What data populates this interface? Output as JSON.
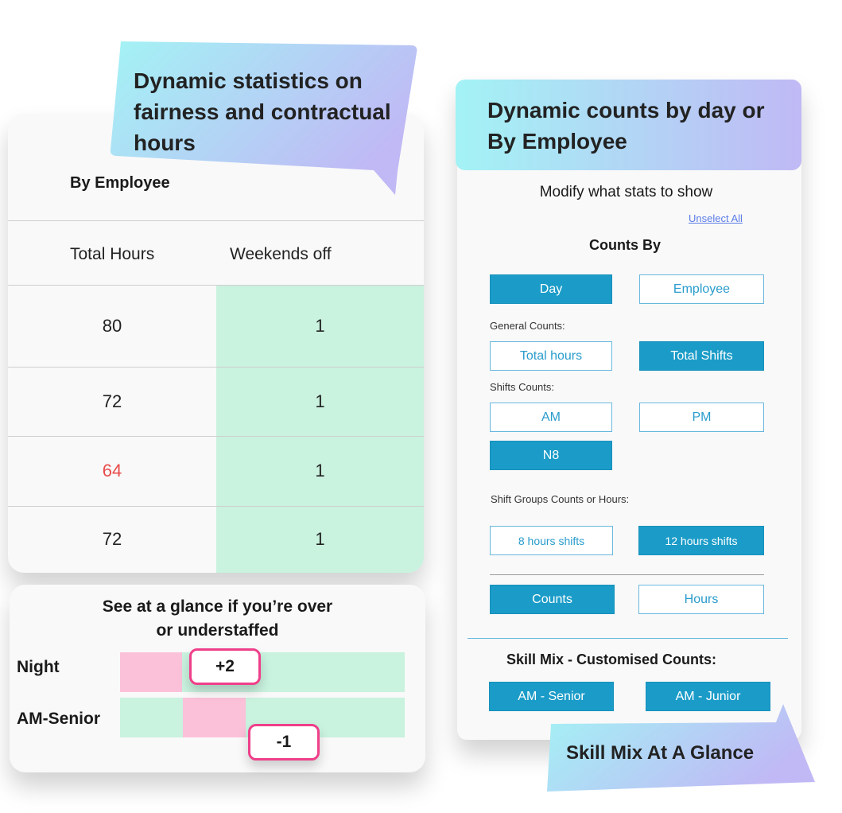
{
  "colors": {
    "accent": "#1b9cc8",
    "green": "#c9f2df",
    "pink": "#fbc1d9",
    "badge_border": "#ef3f8a",
    "warning_text": "#e94b4b",
    "gradient_start": "#a3f3f5",
    "gradient_end": "#c0b9f5"
  },
  "left_callout": {
    "line1": "Dynamic statistics on",
    "line2": "fairness and contractual",
    "line3": "hours"
  },
  "employee_card": {
    "title": "By Employee",
    "columns": [
      "Total Hours",
      "Weekends off"
    ],
    "rows": [
      {
        "total_hours": "80",
        "weekends_off": "1"
      },
      {
        "total_hours": "72",
        "weekends_off": "1"
      },
      {
        "total_hours": "64",
        "weekends_off": "1",
        "warning": true
      },
      {
        "total_hours": "72",
        "weekends_off": "1"
      }
    ]
  },
  "staffing_card": {
    "title_line1": "See at a glance if you’re over",
    "title_line2": "or understaffed",
    "rows": [
      {
        "label": "Night",
        "badge": "+2"
      },
      {
        "label": "AM-Senior",
        "badge": "-1"
      }
    ]
  },
  "right_header": {
    "line1": "Dynamic counts by day or",
    "line2": "By Employee"
  },
  "stats_panel": {
    "title": "Modify what stats to show",
    "unselect_all": "Unselect All",
    "counts_by": "Counts By",
    "day": "Day",
    "employee": "Employee",
    "general_counts": "General Counts:",
    "total_hours": "Total hours",
    "total_shifts": "Total Shifts",
    "shifts_counts": "Shifts Counts:",
    "am": "AM",
    "pm": "PM",
    "n8": "N8",
    "shift_groups": "Shift Groups Counts or Hours:",
    "eight_hours": "8 hours shifts",
    "twelve_hours": "12 hours shifts",
    "counts": "Counts",
    "hours": "Hours",
    "skill_mix": "Skill Mix - Customised Counts:",
    "am_senior": "AM - Senior",
    "am_junior": "AM - Junior"
  },
  "bottom_callout": {
    "text": "Skill Mix At A Glance"
  }
}
